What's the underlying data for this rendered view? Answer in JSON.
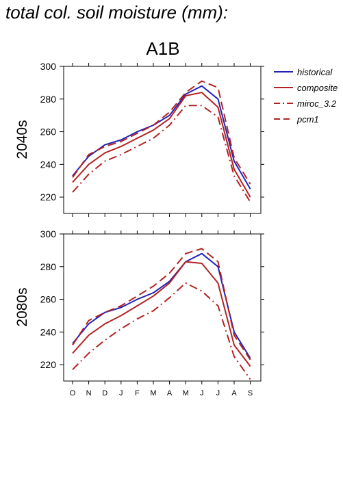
{
  "figure": {
    "title": "total col. soil moisture (mm):",
    "subtitle": "A1B"
  },
  "chart_data": [
    {
      "type": "line",
      "panel_label": "2040s",
      "categories": [
        "O",
        "N",
        "D",
        "J",
        "F",
        "M",
        "A",
        "M",
        "J",
        "J",
        "A",
        "S"
      ],
      "ylim": [
        210,
        300
      ],
      "yticks": [
        220,
        240,
        260,
        280,
        300
      ],
      "grid": false,
      "legend": "right",
      "series": [
        {
          "name": "historical",
          "color": "#2222bb",
          "dash": "solid",
          "values": [
            233,
            245,
            252,
            255,
            260,
            264,
            270,
            283,
            288,
            280,
            242,
            225
          ]
        },
        {
          "name": "composite",
          "color": "#b22222",
          "dash": "solid",
          "values": [
            229,
            240,
            247,
            251,
            256,
            261,
            268,
            282,
            284,
            275,
            237,
            220
          ]
        },
        {
          "name": "miroc_3.2",
          "color": "#b22222",
          "dash": "dashdot",
          "values": [
            223,
            234,
            242,
            246,
            251,
            256,
            264,
            276,
            276,
            269,
            233,
            217
          ]
        },
        {
          "name": "pcm1",
          "color": "#b22222",
          "dash": "dashed",
          "values": [
            232,
            246,
            251,
            254,
            259,
            264,
            272,
            284,
            291,
            287,
            244,
            228
          ]
        }
      ]
    },
    {
      "type": "line",
      "panel_label": "2080s",
      "categories": [
        "O",
        "N",
        "D",
        "J",
        "F",
        "M",
        "A",
        "M",
        "J",
        "J",
        "A",
        "S"
      ],
      "ylim": [
        210,
        300
      ],
      "yticks": [
        220,
        240,
        260,
        280,
        300
      ],
      "grid": false,
      "legend": "none",
      "series": [
        {
          "name": "historical",
          "color": "#2222bb",
          "dash": "solid",
          "values": [
            233,
            245,
            252,
            255,
            260,
            264,
            271,
            283,
            288,
            280,
            240,
            224
          ]
        },
        {
          "name": "composite",
          "color": "#b22222",
          "dash": "solid",
          "values": [
            227,
            238,
            245,
            250,
            256,
            262,
            270,
            283,
            282,
            270,
            232,
            219
          ]
        },
        {
          "name": "miroc_3.2",
          "color": "#b22222",
          "dash": "dashdot",
          "values": [
            217,
            227,
            235,
            242,
            248,
            253,
            261,
            270,
            265,
            256,
            225,
            211
          ]
        },
        {
          "name": "pcm1",
          "color": "#b22222",
          "dash": "dashed",
          "values": [
            232,
            247,
            252,
            256,
            262,
            268,
            276,
            288,
            291,
            283,
            238,
            223
          ]
        }
      ]
    }
  ]
}
